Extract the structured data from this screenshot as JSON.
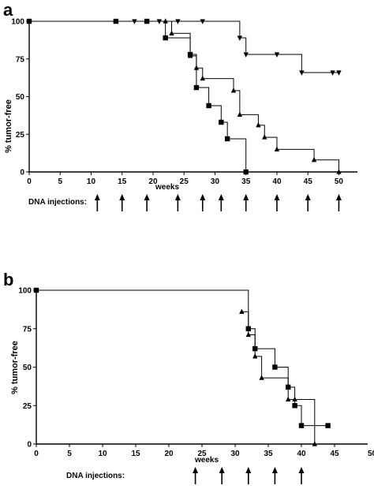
{
  "chart_data": [
    {
      "panel_label": "a",
      "type": "line",
      "step": true,
      "xlabel": "weeks",
      "ylabel": "% tumor-free",
      "xlim": [
        0,
        53
      ],
      "ylim": [
        0,
        100
      ],
      "xticks": [
        0,
        5,
        10,
        15,
        20,
        25,
        30,
        35,
        40,
        45,
        50
      ],
      "yticks": [
        0,
        25,
        50,
        75,
        100
      ],
      "series": [
        {
          "marker": "triangle-down",
          "x": [
            0,
            17,
            19,
            21,
            24,
            28,
            34,
            35,
            40,
            44,
            49,
            50
          ],
          "y": [
            100,
            100,
            100,
            100,
            100,
            100,
            89,
            78,
            78,
            66,
            66,
            66
          ]
        },
        {
          "marker": "triangle-up",
          "x": [
            0,
            22,
            23,
            26,
            27,
            28,
            33,
            34,
            37,
            38,
            40,
            46,
            50
          ],
          "y": [
            100,
            100,
            92,
            77,
            69,
            62,
            54,
            38,
            31,
            23,
            15,
            8,
            0
          ]
        },
        {
          "marker": "square",
          "x": [
            0,
            14,
            19,
            22,
            26,
            27,
            29,
            31,
            32,
            35
          ],
          "y": [
            100,
            100,
            100,
            89,
            78,
            56,
            44,
            33,
            22,
            0
          ]
        }
      ],
      "injection_label": "DNA injections:",
      "injection_weeks": [
        11,
        15,
        19,
        24,
        28,
        31,
        35,
        40,
        45,
        50
      ]
    },
    {
      "panel_label": "b",
      "type": "line",
      "step": true,
      "xlabel": "weeks",
      "ylabel": "% tumor-free",
      "xlim": [
        0,
        50
      ],
      "ylim": [
        0,
        100
      ],
      "xticks": [
        0,
        5,
        10,
        15,
        20,
        25,
        30,
        35,
        40,
        45
      ],
      "xtick_labels": [
        "0",
        "5",
        "10",
        "15",
        "20",
        "25",
        "30",
        "35",
        "40",
        "45"
      ],
      "extra_xtick_label": "50",
      "yticks": [
        0,
        25,
        50,
        75,
        100
      ],
      "series": [
        {
          "marker": "square",
          "x": [
            0,
            32,
            33,
            36,
            38,
            39,
            40,
            44
          ],
          "y": [
            100,
            75,
            62,
            50,
            37,
            25,
            12,
            12
          ]
        },
        {
          "marker": "triangle-up",
          "x": [
            31,
            32,
            33,
            34,
            38,
            39,
            42
          ],
          "y": [
            86,
            71,
            57,
            43,
            29,
            29,
            0
          ]
        }
      ],
      "injection_label": "DNA injections:",
      "injection_weeks": [
        24,
        28,
        32,
        36,
        40
      ]
    }
  ]
}
